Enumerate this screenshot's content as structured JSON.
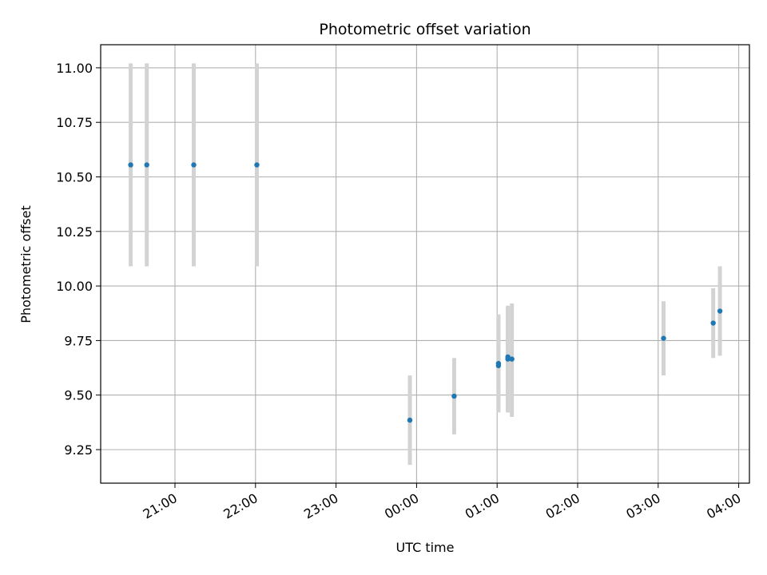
{
  "chart_data": {
    "type": "scatter",
    "title": "Photometric offset variation",
    "xlabel": "UTC time",
    "ylabel": "Photometric offset",
    "x_unit": "hours relative to 00:00 UTC",
    "xlim": [
      -22.0,
      4.1
    ],
    "ylim": [
      9.09,
      11.11
    ],
    "x_ticks": [
      {
        "value": -3,
        "label": "21:00"
      },
      {
        "value": -2,
        "label": "22:00"
      },
      {
        "value": -1,
        "label": "23:00"
      },
      {
        "value": 0,
        "label": "00:00"
      },
      {
        "value": 1,
        "label": "01:00"
      },
      {
        "value": 2,
        "label": "02:00"
      },
      {
        "value": 3,
        "label": "03:00"
      },
      {
        "value": 4,
        "label": "04:00"
      }
    ],
    "y_ticks": [
      {
        "value": 9.25,
        "label": "9.25"
      },
      {
        "value": 9.5,
        "label": "9.50"
      },
      {
        "value": 9.75,
        "label": "9.75"
      },
      {
        "value": 10.0,
        "label": "10.00"
      },
      {
        "value": 10.25,
        "label": "10.25"
      },
      {
        "value": 10.5,
        "label": "10.50"
      },
      {
        "value": 10.75,
        "label": "10.75"
      },
      {
        "value": 11.0,
        "label": "11.00"
      }
    ],
    "grid": true,
    "marker_color": "#1f77b4",
    "errorbar_color": "#d3d3d3",
    "points": [
      {
        "time": "20:27",
        "y": 10.555,
        "err_low": 10.09,
        "err_high": 11.02
      },
      {
        "time": "20:39",
        "y": 10.555,
        "err_low": 10.09,
        "err_high": 11.02
      },
      {
        "time": "21:14",
        "y": 10.555,
        "err_low": 10.09,
        "err_high": 11.02
      },
      {
        "time": "22:01",
        "y": 10.555,
        "err_low": 10.09,
        "err_high": 11.02
      },
      {
        "time": "23:55",
        "y": 9.385,
        "err_low": 9.18,
        "err_high": 9.59
      },
      {
        "time": "00:28",
        "y": 9.495,
        "err_low": 9.32,
        "err_high": 9.67
      },
      {
        "time": "01:01",
        "y": 9.635,
        "err_low": 9.42,
        "err_high": 9.86
      },
      {
        "time": "01:01",
        "y": 9.645,
        "err_low": 9.43,
        "err_high": 9.87
      },
      {
        "time": "01:08",
        "y": 9.665,
        "err_low": 9.42,
        "err_high": 9.9
      },
      {
        "time": "01:08",
        "y": 9.675,
        "err_low": 9.43,
        "err_high": 9.91
      },
      {
        "time": "01:11",
        "y": 9.665,
        "err_low": 9.4,
        "err_high": 9.92
      },
      {
        "time": "03:04",
        "y": 9.76,
        "err_low": 9.59,
        "err_high": 9.93
      },
      {
        "time": "03:41",
        "y": 9.83,
        "err_low": 9.67,
        "err_high": 9.99
      },
      {
        "time": "03:46",
        "y": 9.885,
        "err_low": 9.68,
        "err_high": 10.09
      }
    ]
  }
}
